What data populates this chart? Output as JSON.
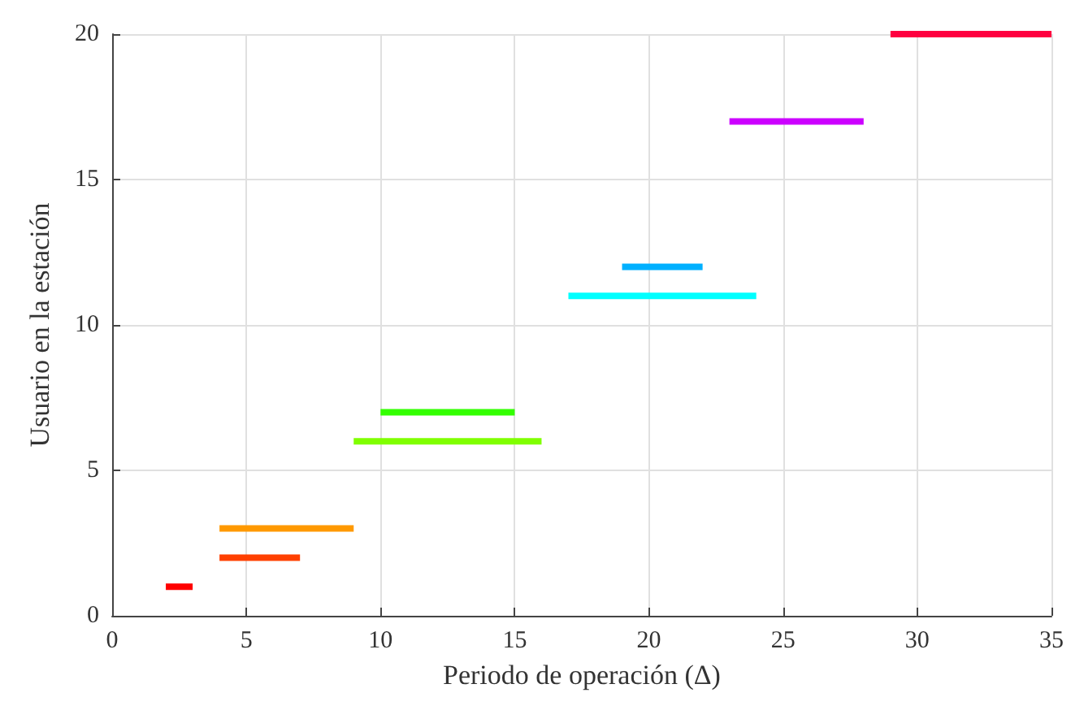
{
  "chart_data": {
    "type": "line",
    "xlabel": "Periodo de operación (Δ)",
    "ylabel": "Usuario en la estación",
    "xlim": [
      0,
      35
    ],
    "xticks": [
      0,
      5,
      10,
      15,
      20,
      25,
      30,
      35
    ],
    "ylim": [
      0,
      20
    ],
    "yticks": [
      0,
      5,
      10,
      15,
      20
    ],
    "grid": true,
    "marker": "none",
    "line_style": "solid",
    "series": [
      {
        "color": "#ff0000",
        "x": [
          2,
          3
        ],
        "values": [
          1,
          1
        ]
      },
      {
        "color": "#ff4000",
        "x": [
          4,
          7
        ],
        "values": [
          2,
          2
        ]
      },
      {
        "color": "#ff9900",
        "x": [
          4,
          9
        ],
        "values": [
          3,
          3
        ]
      },
      {
        "color": "#80ff00",
        "x": [
          9,
          16
        ],
        "values": [
          6,
          6
        ]
      },
      {
        "color": "#33ff00",
        "x": [
          10,
          15
        ],
        "values": [
          7,
          7
        ]
      },
      {
        "color": "#00ffff",
        "x": [
          17,
          24
        ],
        "values": [
          11,
          11
        ]
      },
      {
        "color": "#00b0ff",
        "x": [
          19,
          22
        ],
        "values": [
          12,
          12
        ]
      },
      {
        "color": "#cc00ff",
        "x": [
          23,
          28
        ],
        "values": [
          17,
          17
        ]
      },
      {
        "color": "#ff0040",
        "x": [
          29,
          35
        ],
        "values": [
          20,
          20
        ]
      }
    ]
  }
}
